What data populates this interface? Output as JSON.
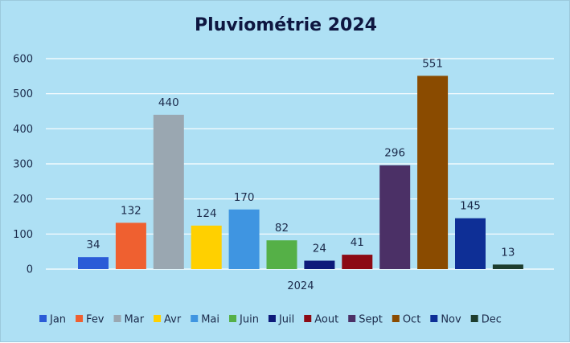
{
  "chart_data": {
    "type": "bar",
    "title": "Pluviométrie 2024",
    "categories": [
      "2024"
    ],
    "series": [
      {
        "name": "Jan",
        "values": [
          34
        ],
        "color": "#2a5bd7"
      },
      {
        "name": "Fev",
        "values": [
          132
        ],
        "color": "#ef6030"
      },
      {
        "name": "Mar",
        "values": [
          440
        ],
        "color": "#9aa7b1"
      },
      {
        "name": "Avr",
        "values": [
          124
        ],
        "color": "#ffd000"
      },
      {
        "name": "Mai",
        "values": [
          170
        ],
        "color": "#3f95e1"
      },
      {
        "name": "Juin",
        "values": [
          82
        ],
        "color": "#55b047"
      },
      {
        "name": "Juil",
        "values": [
          24
        ],
        "color": "#0d1a7a"
      },
      {
        "name": "Aout",
        "values": [
          41
        ],
        "color": "#8c0a14"
      },
      {
        "name": "Sept",
        "values": [
          296
        ],
        "color": "#4b3066"
      },
      {
        "name": "Oct",
        "values": [
          551
        ],
        "color": "#8a4b00"
      },
      {
        "name": "Nov",
        "values": [
          145
        ],
        "color": "#0e2f96"
      },
      {
        "name": "Dec",
        "values": [
          13
        ],
        "color": "#1d3d2e"
      }
    ],
    "yticks": [
      0,
      100,
      200,
      300,
      400,
      500,
      600
    ],
    "ylim": [
      0,
      600
    ],
    "xlabel": "",
    "ylabel": "",
    "grid": true,
    "legend": "bottom",
    "data_labels": true
  }
}
